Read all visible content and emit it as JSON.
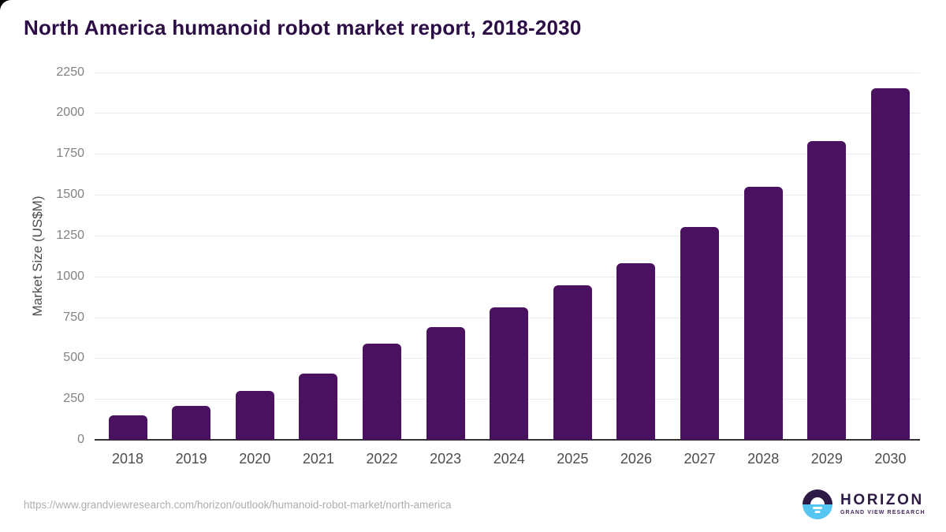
{
  "chart_data": {
    "type": "bar",
    "title": "North America humanoid robot market report, 2018-2030",
    "categories": [
      "2018",
      "2019",
      "2020",
      "2021",
      "2022",
      "2023",
      "2024",
      "2025",
      "2026",
      "2027",
      "2028",
      "2029",
      "2030"
    ],
    "values": [
      150,
      205,
      300,
      405,
      590,
      690,
      810,
      945,
      1080,
      1300,
      1550,
      1830,
      2150
    ],
    "xlabel": "",
    "ylabel": "Market Size (US$M)",
    "ylim": [
      0,
      2250
    ],
    "yticks": [
      0,
      250,
      500,
      750,
      1000,
      1250,
      1500,
      1750,
      2000,
      2250
    ],
    "grid": true,
    "legend": false,
    "bar_color": "#4a1160"
  },
  "colors": {
    "title_text": "#2d0d45",
    "bar": "#4a1160",
    "axis_line": "#333333",
    "gridline": "#ebebeb",
    "logo_purple": "#2e1a47",
    "logo_blue": "#55c5f1"
  },
  "footer": {
    "source_url": "https://www.grandviewresearch.com/horizon/outlook/humanoid-robot-market/north-america",
    "logo_name": "HORIZON",
    "logo_subname": "GRAND VIEW RESEARCH"
  }
}
